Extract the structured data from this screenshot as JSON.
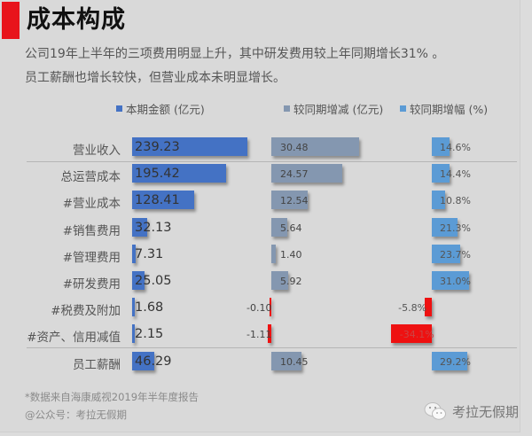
{
  "header": {
    "title": "成本构成",
    "subtitle_lines": [
      "公司19年上半年的三项费用明显上升，其中研发费用较上年同期增长31% 。",
      "员工薪酬也增长较快，但营业成本未明显增长。"
    ]
  },
  "legend": [
    {
      "label": "本期金额 (亿元)",
      "color": "#4472c4"
    },
    {
      "label": "较同期增减 (亿元)",
      "color": "#8497b0"
    },
    {
      "label": "较同期增幅 (%)",
      "color": "#5b9bd5"
    }
  ],
  "rows": [
    {
      "label": "营业收入",
      "current": "239.23",
      "change": "30.48",
      "pct": "14.6%"
    },
    {
      "label": "总运营成本",
      "current": "195.42",
      "change": "24.57",
      "pct": "14.4%"
    },
    {
      "label": "#营业成本",
      "current": "128.41",
      "change": "12.54",
      "pct": "10.8%"
    },
    {
      "label": "#销售费用",
      "current": "32.13",
      "change": "5.64",
      "pct": "21.3%"
    },
    {
      "label": "#管理费用",
      "current": "7.31",
      "change": "1.40",
      "pct": "23.7%"
    },
    {
      "label": "#研发费用",
      "current": "25.05",
      "change": "5.92",
      "pct": "31.0%"
    },
    {
      "label": "#税费及附加",
      "current": "1.68",
      "change": "-0.10",
      "pct": "-5.8%"
    },
    {
      "label": "#资产、信用减值",
      "current": "2.15",
      "change": "-1.11",
      "pct": "-34.1%"
    },
    {
      "label": "员工薪酬",
      "current": "46.29",
      "change": "10.45",
      "pct": "29.2%"
    }
  ],
  "colors": {
    "accent": "#e8141b",
    "current": "#4472c4",
    "change": "#8497b0",
    "pct": "#5b9bd5",
    "negative": "#ee1111"
  },
  "footer": {
    "source": "*数据来自海康威视2019年半年度报告",
    "account": "@公众号：考拉无假期",
    "brand": "考拉无假期",
    "brand_icon": "wechat-icon"
  },
  "chart_data": {
    "type": "bar",
    "title": "成本构成",
    "categories": [
      "营业收入",
      "总运营成本",
      "#营业成本",
      "#销售费用",
      "#管理费用",
      "#研发费用",
      "#税费及附加",
      "#资产、信用减值",
      "员工薪酬"
    ],
    "series": [
      {
        "name": "本期金额 (亿元)",
        "values": [
          239.23,
          195.42,
          128.41,
          32.13,
          7.31,
          25.05,
          1.68,
          2.15,
          46.29
        ]
      },
      {
        "name": "较同期增减 (亿元)",
        "values": [
          30.48,
          24.57,
          12.54,
          5.64,
          1.4,
          5.92,
          -0.1,
          -1.11,
          10.45
        ]
      },
      {
        "name": "较同期增幅 (%)",
        "values": [
          14.6,
          14.4,
          10.8,
          21.3,
          23.7,
          31.0,
          -5.8,
          -34.1,
          29.2
        ]
      }
    ],
    "orientation": "horizontal",
    "legend_position": "top",
    "grid": false,
    "xlabel": "",
    "ylabel": ""
  }
}
